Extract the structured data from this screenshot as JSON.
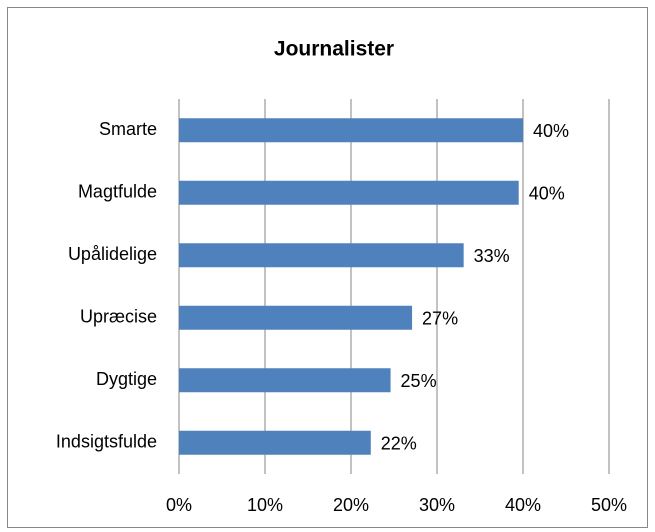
{
  "chart_data": {
    "type": "barh",
    "title": "Journalister",
    "categories": [
      "Smarte",
      "Magtfulde",
      "Upålidelige",
      "Upræcise",
      "Dygtige",
      "Indsigtsfulde"
    ],
    "values": [
      40,
      39.5,
      33.1,
      27.1,
      24.6,
      22.3
    ],
    "value_labels": [
      "40%",
      "40%",
      "33%",
      "27%",
      "25%",
      "22%"
    ],
    "color": "#4f81bd",
    "xlim": [
      0,
      50
    ],
    "xticks": [
      {
        "value": 0,
        "label": "0%"
      },
      {
        "value": 10,
        "label": "10%"
      },
      {
        "value": 20,
        "label": "20%"
      },
      {
        "value": 30,
        "label": "30%"
      },
      {
        "value": 40,
        "label": "40%"
      },
      {
        "value": 50,
        "label": "50%"
      }
    ],
    "grid": true
  }
}
